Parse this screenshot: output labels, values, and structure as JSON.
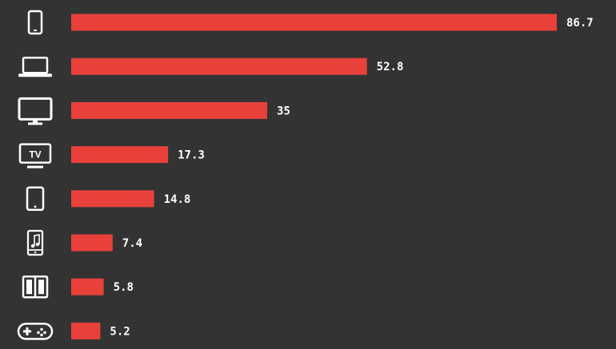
{
  "chart_data": {
    "type": "bar",
    "orientation": "horizontal",
    "categories": [
      "smartphone-icon",
      "laptop-icon",
      "desktop-monitor-icon",
      "tv-icon",
      "tablet-icon",
      "music-player-icon",
      "e-reader-icon",
      "game-controller-icon"
    ],
    "values": [
      86.7,
      52.8,
      35,
      17.3,
      14.8,
      7.4,
      5.8,
      5.2
    ],
    "value_labels": [
      "86.7",
      "52.8",
      "35",
      "17.3",
      "14.8",
      "7.4",
      "5.8",
      "5.2"
    ],
    "title": "",
    "xlabel": "",
    "ylabel": "",
    "xlim": [
      0,
      86.7
    ],
    "grid": false,
    "legend": "none",
    "colors": {
      "background": "#333333",
      "bar": "#e8413a",
      "text": "#ffffff",
      "icon": "#ffffff"
    },
    "icon_text": {
      "tv-icon": "TV"
    }
  }
}
